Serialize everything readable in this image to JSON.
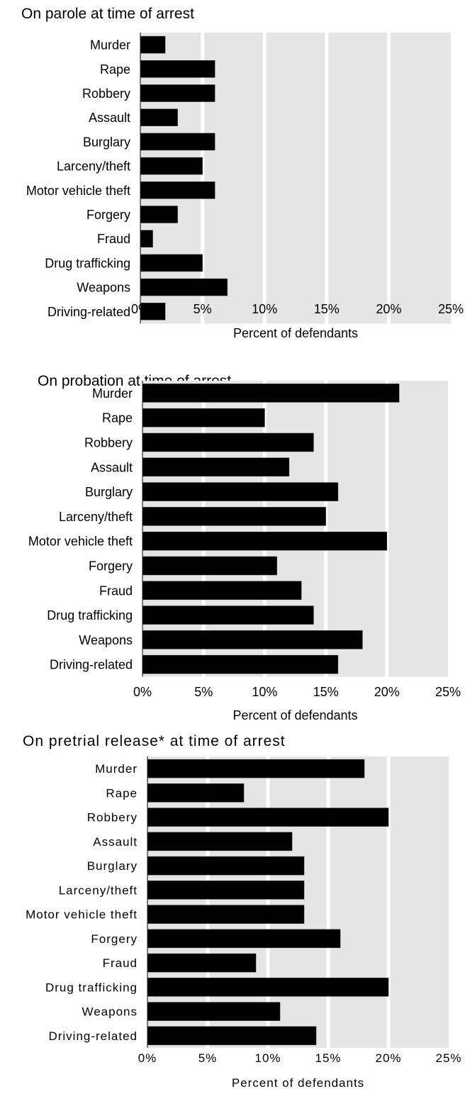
{
  "chart_data": [
    {
      "type": "bar",
      "orientation": "horizontal",
      "title": "On parole at time of arrest",
      "xlabel": "Percent of defendants",
      "xlim": [
        0,
        25
      ],
      "xticks": [
        "0%",
        "5%",
        "10%",
        "15%",
        "20%",
        "25%"
      ],
      "categories": [
        "Murder",
        "Rape",
        "Robbery",
        "Assault",
        "Burglary",
        "Larceny/theft",
        "Motor vehicle theft",
        "Forgery",
        "Fraud",
        "Drug trafficking",
        "Weapons",
        "Driving-related"
      ],
      "values": [
        2,
        6,
        6,
        3,
        6,
        5,
        6,
        3,
        1,
        5,
        7,
        2
      ],
      "colors": {
        "bar": "#000000",
        "background": "#e5e5e5",
        "gridline": "#ffffff"
      }
    },
    {
      "type": "bar",
      "orientation": "horizontal",
      "title": "On probation at time of arrest",
      "xlabel": "Percent of defendants",
      "xlim": [
        0,
        25
      ],
      "xticks": [
        "0%",
        "5%",
        "10%",
        "15%",
        "20%",
        "25%"
      ],
      "categories": [
        "Murder",
        "Rape",
        "Robbery",
        "Assault",
        "Burglary",
        "Larceny/theft",
        "Motor vehicle theft",
        "Forgery",
        "Fraud",
        "Drug trafficking",
        "Weapons",
        "Driving-related"
      ],
      "values": [
        21,
        10,
        14,
        12,
        16,
        15,
        20,
        11,
        13,
        14,
        18,
        16
      ],
      "colors": {
        "bar": "#000000",
        "background": "#e5e5e5",
        "gridline": "#ffffff"
      }
    },
    {
      "type": "bar",
      "orientation": "horizontal",
      "title": "On pretrial release* at time of arrest",
      "xlabel": "Percent of defendants",
      "xlim": [
        0,
        25
      ],
      "xticks": [
        "0%",
        "5%",
        "10%",
        "15%",
        "20%",
        "25%"
      ],
      "categories": [
        "Murder",
        "Rape",
        "Robbery",
        "Assault",
        "Burglary",
        "Larceny/theft",
        "Motor vehicle theft",
        "Forgery",
        "Fraud",
        "Drug trafficking",
        "Weapons",
        "Driving-related"
      ],
      "values": [
        18,
        8,
        20,
        12,
        13,
        13,
        13,
        16,
        9,
        20,
        11,
        14
      ],
      "colors": {
        "bar": "#000000",
        "background": "#e5e5e5",
        "gridline": "#ffffff"
      }
    }
  ]
}
